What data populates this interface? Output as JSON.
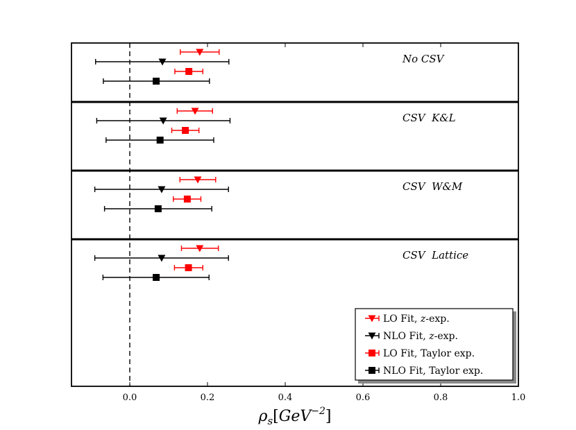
{
  "chart_data": {
    "type": "scatter",
    "subtype": "horizontal-errorbar-forest-plot",
    "title": "",
    "xlabel": "ρ_s[GeV^-2]",
    "xlabel_parts": {
      "symbol": "ρ",
      "sub": "s",
      "open": "[",
      "unit": "GeV",
      "exp": "−2",
      "close": "]"
    },
    "ylabel": "",
    "xlim": [
      -0.15,
      1.0
    ],
    "x_ticks": [
      0.0,
      0.2,
      0.4,
      0.6,
      0.8,
      1.0
    ],
    "x_tick_labels": [
      "0.0",
      "0.2",
      "0.4",
      "0.6",
      "0.8",
      "1.0"
    ],
    "reference_line": {
      "x": 0.0,
      "style": "dashed"
    },
    "legend_position": "bottom-right",
    "colors": {
      "red": "#ff0000",
      "black": "#000000"
    },
    "series": [
      {
        "name": "LO Fit, z-exp.",
        "label_main": "LO Fit, ",
        "label_it": "z",
        "label_tail": "-exp.",
        "marker": "triangle-down",
        "color": "#ff0000"
      },
      {
        "name": "NLO Fit, z-exp.",
        "label_main": "NLO Fit, ",
        "label_it": "z",
        "label_tail": "-exp.",
        "marker": "triangle-down",
        "color": "#000000"
      },
      {
        "name": "LO Fit, Taylor exp.",
        "label_main": "LO Fit, Taylor exp.",
        "label_it": "",
        "label_tail": "",
        "marker": "square",
        "color": "#ff0000"
      },
      {
        "name": "NLO Fit, Taylor exp.",
        "label_main": "NLO Fit, Taylor exp.",
        "label_it": "",
        "label_tail": "",
        "marker": "square",
        "color": "#000000"
      }
    ],
    "panels": [
      {
        "label": "No CSV",
        "points": [
          {
            "value": 0.18,
            "low": 0.13,
            "high": 0.23
          },
          {
            "value": 0.084,
            "low": -0.088,
            "high": 0.255
          },
          {
            "value": 0.152,
            "low": 0.116,
            "high": 0.188
          },
          {
            "value": 0.068,
            "low": -0.068,
            "high": 0.205
          }
        ]
      },
      {
        "label": "CSV  K&L",
        "points": [
          {
            "value": 0.168,
            "low": 0.122,
            "high": 0.213
          },
          {
            "value": 0.086,
            "low": -0.085,
            "high": 0.258
          },
          {
            "value": 0.143,
            "low": 0.108,
            "high": 0.178
          },
          {
            "value": 0.078,
            "low": -0.061,
            "high": 0.216
          }
        ]
      },
      {
        "label": "CSV  W&M",
        "points": [
          {
            "value": 0.175,
            "low": 0.129,
            "high": 0.221
          },
          {
            "value": 0.082,
            "low": -0.09,
            "high": 0.254
          },
          {
            "value": 0.148,
            "low": 0.112,
            "high": 0.183
          },
          {
            "value": 0.073,
            "low": -0.065,
            "high": 0.211
          }
        ]
      },
      {
        "label": "CSV  Lattice",
        "points": [
          {
            "value": 0.18,
            "low": 0.133,
            "high": 0.228
          },
          {
            "value": 0.082,
            "low": -0.09,
            "high": 0.254
          },
          {
            "value": 0.151,
            "low": 0.115,
            "high": 0.188
          },
          {
            "value": 0.068,
            "low": -0.069,
            "high": 0.204
          }
        ]
      }
    ]
  }
}
